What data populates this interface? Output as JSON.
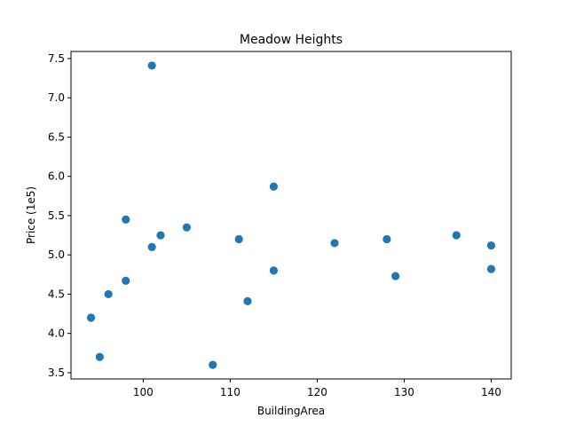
{
  "chart_data": {
    "type": "scatter",
    "title": "Meadow Heights",
    "xlabel": "BuildingArea",
    "ylabel": "Price (1e5)",
    "xlim": [
      91.7,
      142.3
    ],
    "ylim": [
      3.42,
      7.59
    ],
    "xticks": [
      100,
      110,
      120,
      130,
      140
    ],
    "yticks": [
      3.5,
      4.0,
      4.5,
      5.0,
      5.5,
      6.0,
      6.5,
      7.0,
      7.5
    ],
    "xtick_labels": [
      "100",
      "110",
      "120",
      "130",
      "140"
    ],
    "ytick_labels": [
      "3.5",
      "4.0",
      "4.5",
      "5.0",
      "5.5",
      "6.0",
      "6.5",
      "7.0",
      "7.5"
    ],
    "grid": false,
    "marker_color": "#1f77b4",
    "series": [
      {
        "points": [
          {
            "x": 94,
            "y": 4.2
          },
          {
            "x": 95,
            "y": 3.7
          },
          {
            "x": 96,
            "y": 4.5
          },
          {
            "x": 98,
            "y": 5.45
          },
          {
            "x": 98,
            "y": 4.67
          },
          {
            "x": 101,
            "y": 7.41
          },
          {
            "x": 101,
            "y": 5.1
          },
          {
            "x": 102,
            "y": 5.25
          },
          {
            "x": 105,
            "y": 5.35
          },
          {
            "x": 108,
            "y": 3.6
          },
          {
            "x": 111,
            "y": 5.2
          },
          {
            "x": 112,
            "y": 4.41
          },
          {
            "x": 115,
            "y": 5.87
          },
          {
            "x": 115,
            "y": 4.8
          },
          {
            "x": 122,
            "y": 5.15
          },
          {
            "x": 128,
            "y": 5.2
          },
          {
            "x": 129,
            "y": 4.73
          },
          {
            "x": 136,
            "y": 5.25
          },
          {
            "x": 140,
            "y": 5.12
          },
          {
            "x": 140,
            "y": 4.82
          }
        ]
      }
    ]
  }
}
